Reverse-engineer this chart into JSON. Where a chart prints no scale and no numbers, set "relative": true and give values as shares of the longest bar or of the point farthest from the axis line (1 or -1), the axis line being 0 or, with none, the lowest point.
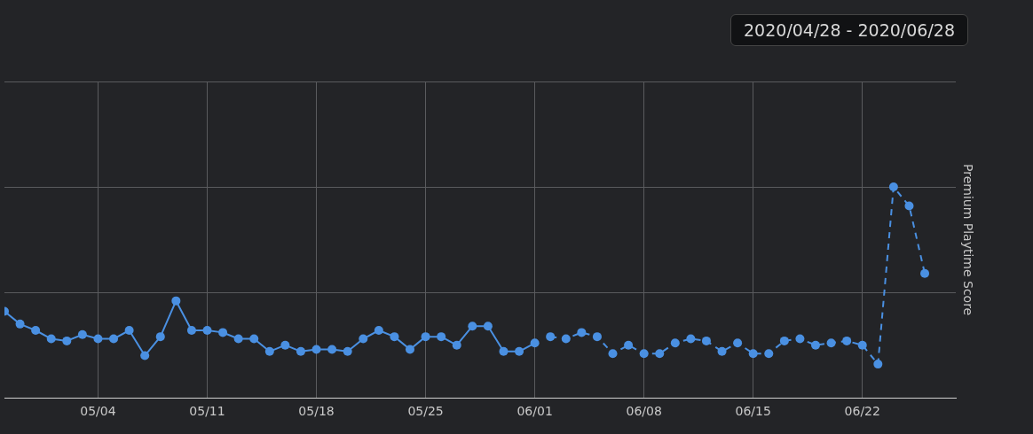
{
  "chart_data": {
    "type": "line",
    "title": "2020/04/28 - 2020/06/28",
    "ylabel": "Premium Playtime Score",
    "relative": true,
    "legend": false,
    "grid": true,
    "marker": "circle",
    "xlim": [
      "2020-04-28",
      "2020-06-28"
    ],
    "xticks": [
      {
        "value": "2020-05-04",
        "label": "05/04"
      },
      {
        "value": "2020-05-11",
        "label": "05/11"
      },
      {
        "value": "2020-05-18",
        "label": "05/18"
      },
      {
        "value": "2020-05-25",
        "label": "05/25"
      },
      {
        "value": "2020-06-01",
        "label": "06/01"
      },
      {
        "value": "2020-06-08",
        "label": "06/08"
      },
      {
        "value": "2020-06-15",
        "label": "06/15"
      },
      {
        "value": "2020-06-22",
        "label": "06/22"
      }
    ],
    "series": [
      {
        "color": "#4a90e2",
        "line_style": "solid",
        "x": [
          "2020-04-28",
          "2020-04-29",
          "2020-04-30",
          "2020-05-01",
          "2020-05-02",
          "2020-05-03",
          "2020-05-04",
          "2020-05-05",
          "2020-05-06",
          "2020-05-07",
          "2020-05-08",
          "2020-05-09",
          "2020-05-10",
          "2020-05-11",
          "2020-05-12",
          "2020-05-13",
          "2020-05-14",
          "2020-05-15",
          "2020-05-16",
          "2020-05-17",
          "2020-05-18",
          "2020-05-19",
          "2020-05-20",
          "2020-05-21",
          "2020-05-22",
          "2020-05-23",
          "2020-05-24",
          "2020-05-25",
          "2020-05-26",
          "2020-05-27",
          "2020-05-28",
          "2020-05-29",
          "2020-05-30",
          "2020-05-31",
          "2020-06-01"
        ],
        "values": [
          0.41,
          0.35,
          0.32,
          0.28,
          0.27,
          0.3,
          0.28,
          0.28,
          0.32,
          0.2,
          0.29,
          0.46,
          0.32,
          0.32,
          0.31,
          0.28,
          0.28,
          0.22,
          0.25,
          0.22,
          0.23,
          0.23,
          0.22,
          0.28,
          0.32,
          0.29,
          0.23,
          0.29,
          0.29,
          0.25,
          0.34,
          0.34,
          0.22,
          0.22,
          0.26
        ]
      },
      {
        "color": "#4a90e2",
        "line_style": "dashed",
        "x": [
          "2020-06-02",
          "2020-06-03",
          "2020-06-04",
          "2020-06-05",
          "2020-06-06",
          "2020-06-07",
          "2020-06-08",
          "2020-06-09",
          "2020-06-10",
          "2020-06-11",
          "2020-06-12",
          "2020-06-13",
          "2020-06-14",
          "2020-06-15",
          "2020-06-16",
          "2020-06-17",
          "2020-06-18",
          "2020-06-19",
          "2020-06-20",
          "2020-06-21",
          "2020-06-22",
          "2020-06-23",
          "2020-06-24",
          "2020-06-25",
          "2020-06-26"
        ],
        "values": [
          0.29,
          0.28,
          0.31,
          0.29,
          0.21,
          0.25,
          0.21,
          0.21,
          0.26,
          0.28,
          0.27,
          0.22,
          0.26,
          0.21,
          0.21,
          0.27,
          0.28,
          0.25,
          0.26,
          0.27,
          0.25,
          0.16,
          1,
          0.91,
          0.59
        ]
      }
    ]
  }
}
